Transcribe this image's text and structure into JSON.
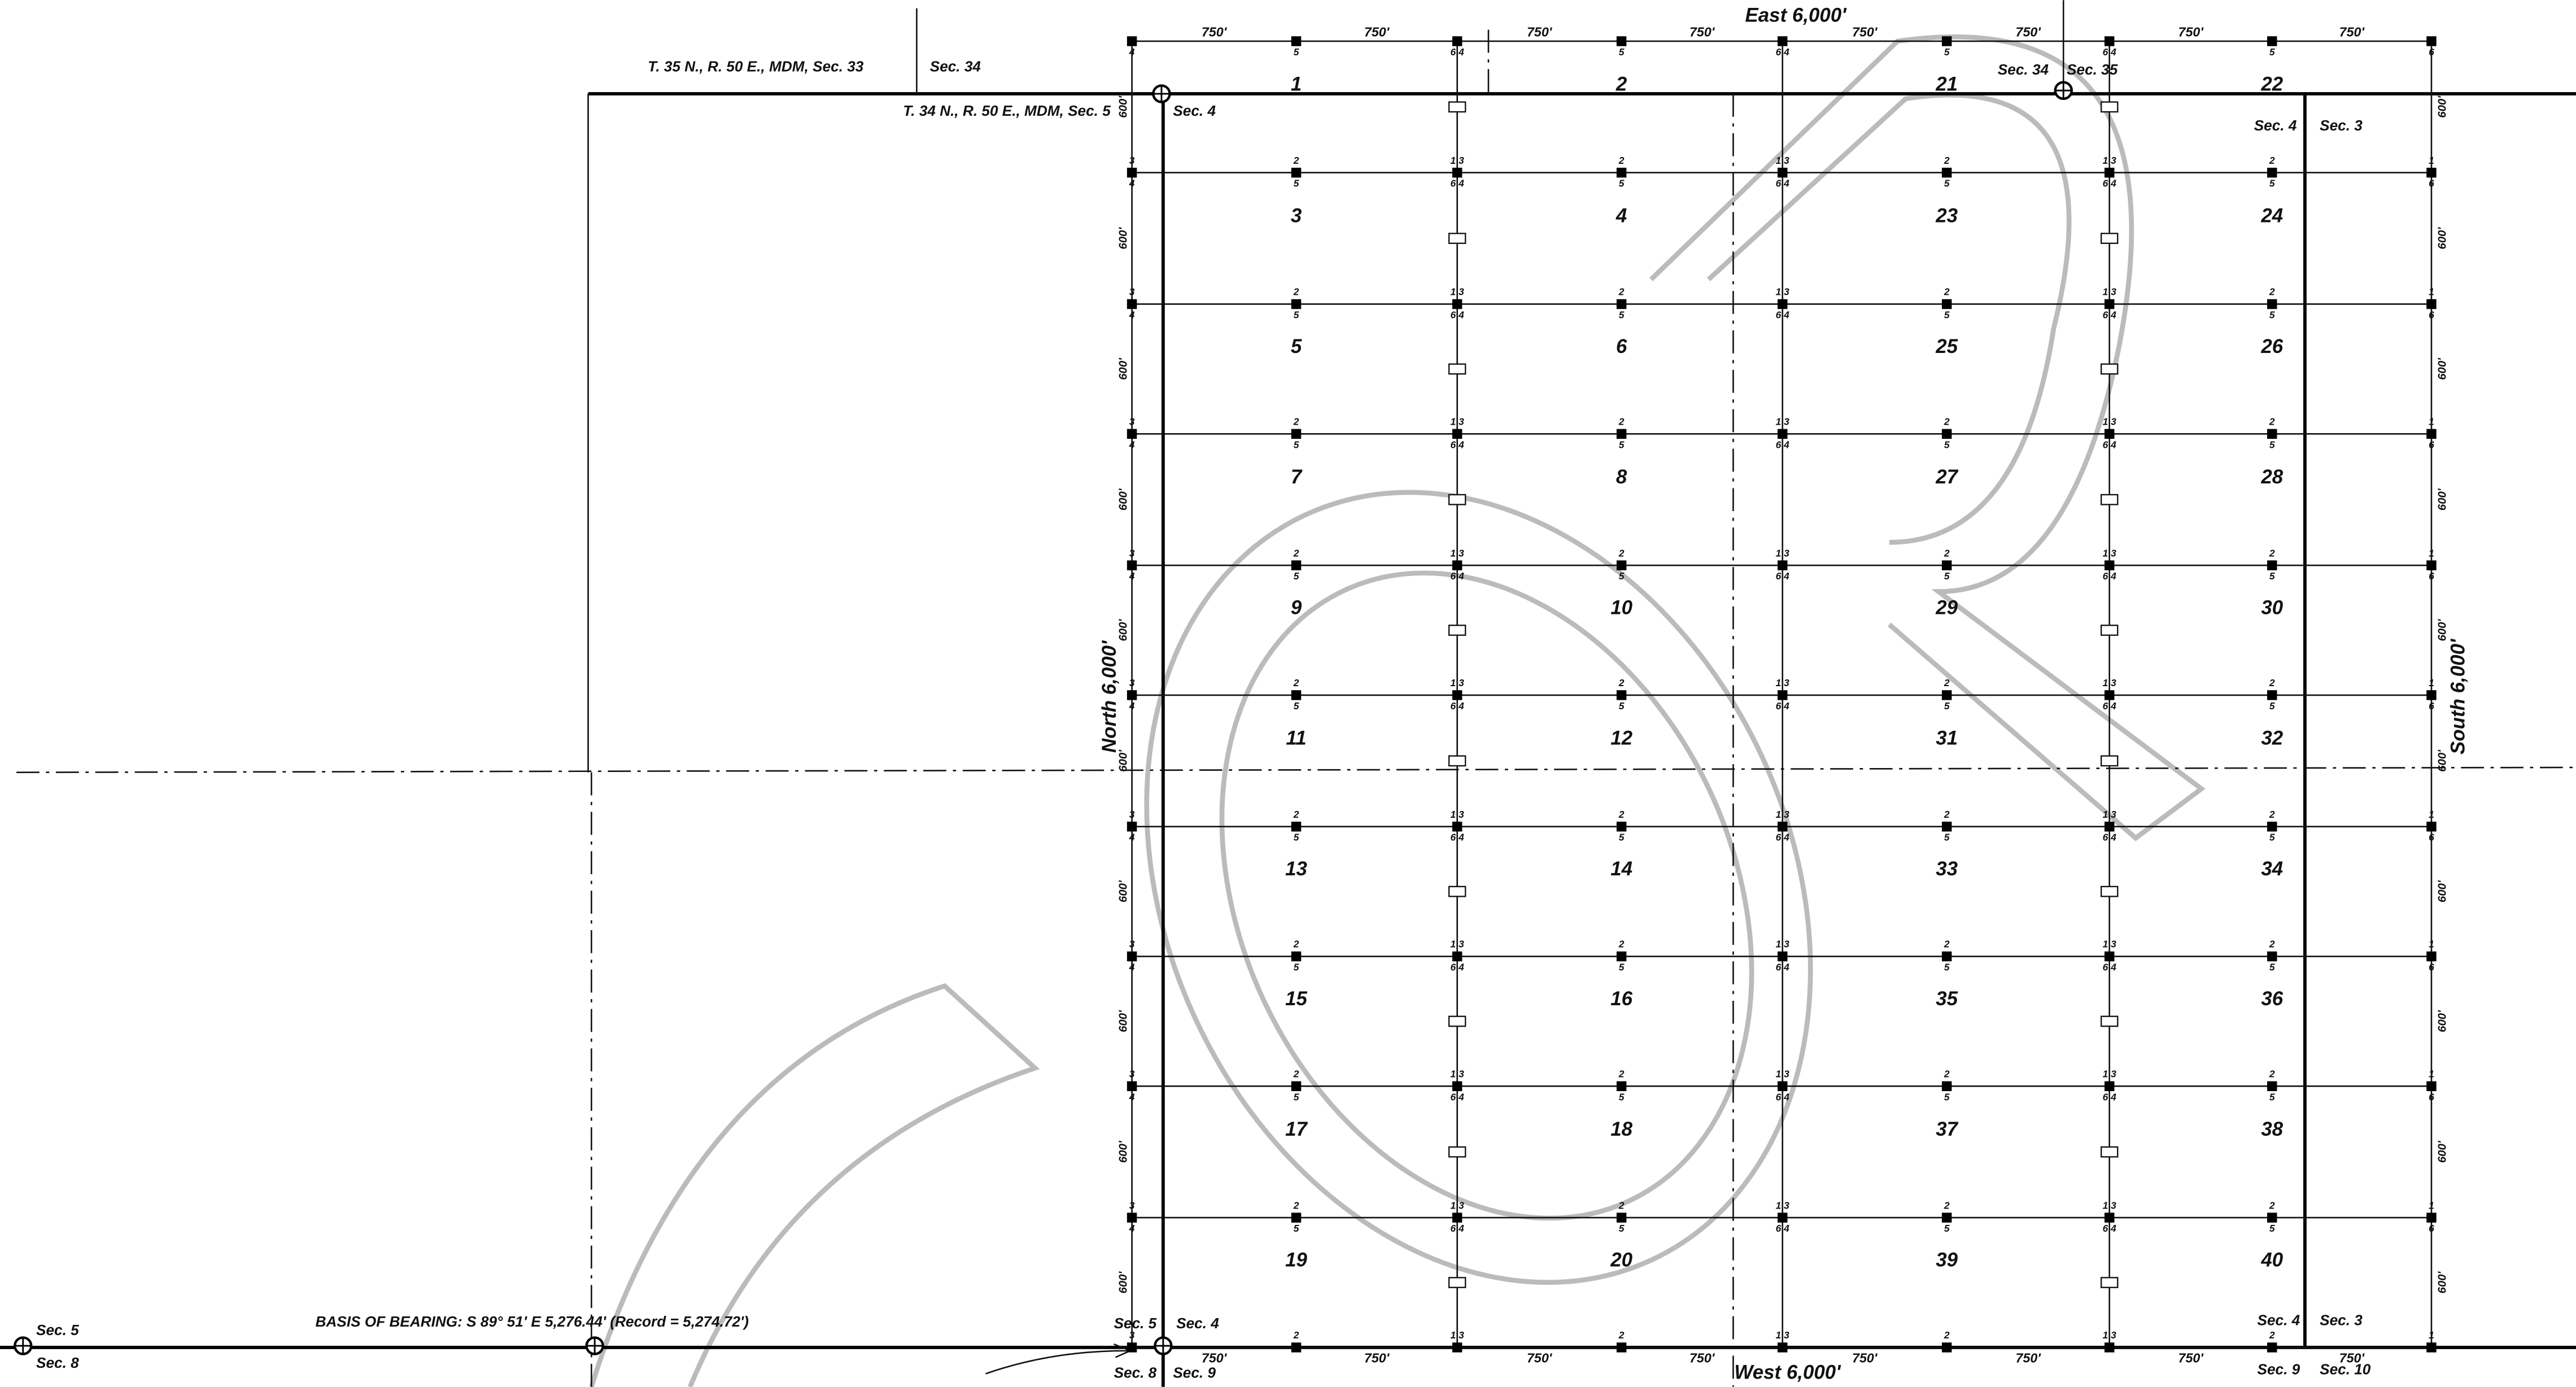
{
  "plat": {
    "boundary_labels": {
      "east": "East 6,000'",
      "west": "West 6,000'",
      "north": "North 6,000'",
      "south": "South 6,000'"
    },
    "basis_of_bearing": "BASIS OF BEARING: S 89° 51' E 5,276.44' (Record = 5,274.72')",
    "section_labels": [
      "T. 35 N., R. 50 E., MDM, Sec. 33",
      "Sec. 34",
      "T. 34 N., R. 50 E., MDM, Sec. 5",
      "Sec. 4",
      "Sec. 34",
      "Sec. 35",
      "Sec. 4",
      "Sec. 3",
      "Sec. 5",
      "Sec. 8",
      "Sec. 5",
      "Sec. 4",
      "Sec. 8",
      "Sec. 9",
      "Sec. 4",
      "Sec. 3",
      "Sec. 9",
      "Sec. 10"
    ],
    "claims": [
      "1",
      "2",
      "3",
      "4",
      "5",
      "6",
      "7",
      "8",
      "9",
      "10",
      "11",
      "12",
      "13",
      "14",
      "15",
      "16",
      "17",
      "18",
      "19",
      "20",
      "21",
      "22",
      "23",
      "24",
      "25",
      "26",
      "27",
      "28",
      "29",
      "30",
      "31",
      "32",
      "33",
      "34",
      "35",
      "36",
      "37",
      "38",
      "39",
      "40"
    ],
    "dimension_width": "750'",
    "dimension_height": "600'",
    "corner_labels": {
      "above": [
        "3",
        "2",
        "1 3",
        "2",
        "1 3",
        "2",
        "1 3",
        "2",
        "1"
      ],
      "below": [
        "4",
        "5",
        "6 4",
        "5",
        "6 4",
        "5",
        "6 4",
        "5",
        "6"
      ]
    }
  }
}
